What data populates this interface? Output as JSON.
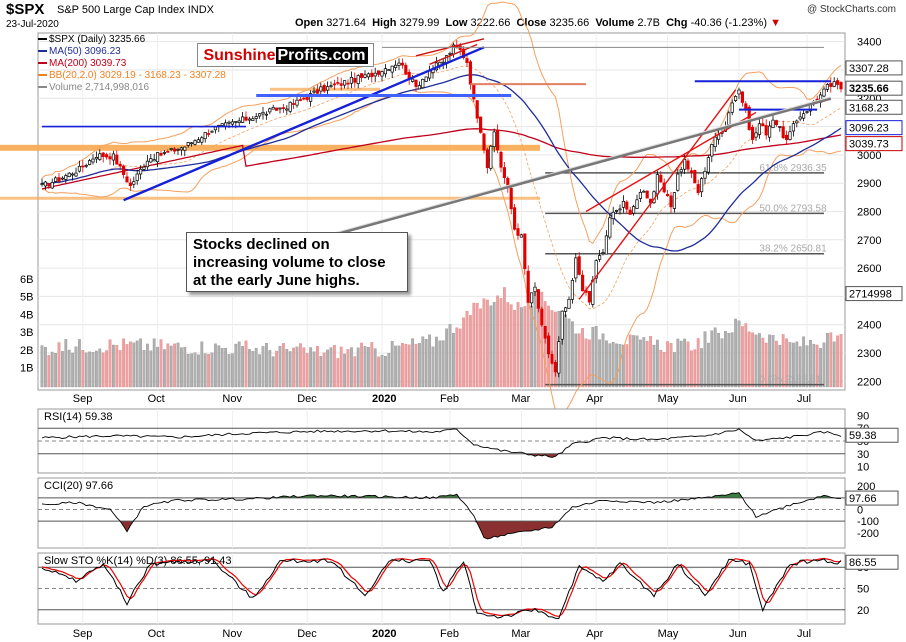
{
  "header": {
    "symbol": "$SPX",
    "name": "S&P 500 Large Cap Index",
    "exchange": "INDX",
    "date": "23-Jul-2020",
    "open_label": "Open",
    "open": "3271.64",
    "high_label": "High",
    "high": "3279.99",
    "low_label": "Low",
    "low": "3222.66",
    "close_label": "Close",
    "close": "3235.66",
    "volume_label": "Volume",
    "volume": "2.7B",
    "chg_label": "Chg",
    "chg": "-40.36 (-1.23%)",
    "credit": "@ StockCharts.com"
  },
  "logo": {
    "part1": "Sunshine",
    "part2": "Profits.com"
  },
  "annotation": {
    "line1": "Stocks declined on",
    "line2": "increasing volume to close",
    "line3": "at the early June highs."
  },
  "legend": [
    {
      "text": "$SPX (Daily) 3235.66",
      "color": "#000000"
    },
    {
      "text": "MA(50) 3096.23",
      "color": "#1f2d9a"
    },
    {
      "text": "MA(200) 3039.73",
      "color": "#c0001a"
    },
    {
      "text": "BB(20,2.0) 3029.19 - 3168.23 - 3307.28",
      "color": "#f08020"
    },
    {
      "text": "Volume 2,714,998,016",
      "color": "#888888"
    }
  ],
  "colors": {
    "up": "#000000",
    "down": "#e00000",
    "ma50": "#1f2d9a",
    "ma200": "#c0001a",
    "bb": "#f4a060",
    "vol": "#b0b0b0",
    "vol_down": "#f0a0a0",
    "fib": "#555555"
  },
  "chart_data": [
    {
      "type": "candlestick",
      "x_labels": [
        "Sep",
        "Oct",
        "Nov",
        "Dec",
        "2020",
        "Feb",
        "Mar",
        "Apr",
        "May",
        "Jun",
        "Jul"
      ],
      "y_ticks": [
        "3400",
        "3300",
        "3200",
        "3100",
        "3000",
        "2900",
        "2800",
        "2700",
        "2600",
        "2500",
        "2400",
        "2300",
        "2200"
      ],
      "ylim": [
        2180,
        3420
      ],
      "volume_ticks": [
        "6B",
        "5B",
        "4B",
        "3B",
        "2B",
        "1B"
      ],
      "price_badges": [
        {
          "value": "3307.28",
          "y": 3307.28,
          "style": "plain"
        },
        {
          "value": "3235.66",
          "y": 3235.66,
          "style": "bold"
        },
        {
          "value": "3168.23",
          "y": 3168.23,
          "style": "plain"
        },
        {
          "value": "3096.23",
          "y": 3096.23,
          "style": "blue"
        },
        {
          "value": "3039.73",
          "y": 3039.73,
          "style": "red"
        },
        {
          "value": "2714998",
          "y": 2510,
          "style": "plain"
        }
      ],
      "fib_levels": [
        {
          "label": "61.8% 2936.35",
          "y": 2936.35
        },
        {
          "label": "50.0% 2793.58",
          "y": 2793.58
        },
        {
          "label": "38.2% 2650.81",
          "y": 2650.81
        },
        {
          "label": "0.0% 2188.61",
          "y": 2188.61
        }
      ],
      "close_anchors": [
        [
          0,
          2890
        ],
        [
          5,
          2915
        ],
        [
          11,
          2950
        ],
        [
          16,
          3000
        ],
        [
          21,
          2995
        ],
        [
          26,
          2890
        ],
        [
          31,
          2985
        ],
        [
          37,
          3010
        ],
        [
          42,
          3030
        ],
        [
          50,
          3090
        ],
        [
          58,
          3120
        ],
        [
          66,
          3150
        ],
        [
          74,
          3180
        ],
        [
          82,
          3230
        ],
        [
          90,
          3260
        ],
        [
          96,
          3280
        ],
        [
          100,
          3300
        ],
        [
          105,
          3330
        ],
        [
          110,
          3240
        ],
        [
          114,
          3300
        ],
        [
          118,
          3330
        ],
        [
          121,
          3380
        ],
        [
          123,
          3370
        ],
        [
          125,
          3330
        ],
        [
          127,
          3190
        ],
        [
          129,
          3090
        ],
        [
          131,
          2960
        ],
        [
          133,
          3080
        ],
        [
          135,
          2960
        ],
        [
          137,
          2880
        ],
        [
          139,
          2740
        ],
        [
          141,
          2710
        ],
        [
          143,
          2480
        ],
        [
          145,
          2530
        ],
        [
          147,
          2390
        ],
        [
          149,
          2300
        ],
        [
          151,
          2230
        ],
        [
          153,
          2440
        ],
        [
          155,
          2480
        ],
        [
          157,
          2630
        ],
        [
          159,
          2530
        ],
        [
          161,
          2480
        ],
        [
          163,
          2630
        ],
        [
          165,
          2650
        ],
        [
          167,
          2780
        ],
        [
          169,
          2800
        ],
        [
          171,
          2840
        ],
        [
          173,
          2780
        ],
        [
          175,
          2850
        ],
        [
          177,
          2880
        ],
        [
          179,
          2830
        ],
        [
          181,
          2920
        ],
        [
          183,
          2870
        ],
        [
          185,
          2820
        ],
        [
          187,
          2930
        ],
        [
          189,
          2980
        ],
        [
          191,
          2930
        ],
        [
          193,
          2870
        ],
        [
          195,
          2950
        ],
        [
          197,
          3040
        ],
        [
          199,
          3070
        ],
        [
          201,
          3110
        ],
        [
          203,
          3190
        ],
        [
          205,
          3230
        ],
        [
          207,
          3150
        ],
        [
          209,
          3050
        ],
        [
          211,
          3110
        ],
        [
          213,
          3080
        ],
        [
          215,
          3130
        ],
        [
          217,
          3090
        ],
        [
          219,
          3050
        ],
        [
          221,
          3100
        ],
        [
          223,
          3140
        ],
        [
          225,
          3160
        ],
        [
          227,
          3190
        ],
        [
          229,
          3210
        ],
        [
          231,
          3240
        ],
        [
          233,
          3250
        ],
        [
          235,
          3236
        ]
      ],
      "volume_anchors": [
        [
          0,
          2.2
        ],
        [
          20,
          2.4
        ],
        [
          40,
          2.3
        ],
        [
          60,
          2.2
        ],
        [
          80,
          2.0
        ],
        [
          100,
          2.1
        ],
        [
          115,
          2.6
        ],
        [
          125,
          4.0
        ],
        [
          130,
          4.8
        ],
        [
          136,
          5.3
        ],
        [
          140,
          4.5
        ],
        [
          146,
          5.1
        ],
        [
          152,
          4.4
        ],
        [
          158,
          3.2
        ],
        [
          165,
          3.0
        ],
        [
          175,
          2.5
        ],
        [
          190,
          2.3
        ],
        [
          200,
          3.1
        ],
        [
          205,
          3.6
        ],
        [
          212,
          3.0
        ],
        [
          220,
          2.4
        ],
        [
          235,
          2.7
        ]
      ]
    },
    {
      "type": "line",
      "name": "RSI(14) 59.38",
      "y_ticks": [
        "90",
        "70",
        "50",
        "30",
        "10"
      ],
      "badge": "59.38",
      "ylim": [
        0,
        100
      ],
      "anchors": [
        [
          0,
          55
        ],
        [
          20,
          58
        ],
        [
          40,
          56
        ],
        [
          60,
          62
        ],
        [
          80,
          65
        ],
        [
          100,
          66
        ],
        [
          115,
          64
        ],
        [
          122,
          68
        ],
        [
          127,
          45
        ],
        [
          135,
          35
        ],
        [
          145,
          28
        ],
        [
          151,
          25
        ],
        [
          156,
          45
        ],
        [
          165,
          55
        ],
        [
          180,
          52
        ],
        [
          195,
          58
        ],
        [
          205,
          68
        ],
        [
          210,
          50
        ],
        [
          220,
          56
        ],
        [
          230,
          64
        ],
        [
          235,
          59
        ]
      ]
    },
    {
      "type": "line",
      "name": "CCI(20) 97.66",
      "y_ticks": [
        "200",
        "100",
        "0",
        "-100",
        "-200"
      ],
      "badge": "97.66",
      "ylim": [
        -330,
        270
      ],
      "anchors": [
        [
          0,
          40
        ],
        [
          10,
          60
        ],
        [
          20,
          0
        ],
        [
          25,
          -180
        ],
        [
          30,
          30
        ],
        [
          40,
          80
        ],
        [
          60,
          90
        ],
        [
          80,
          120
        ],
        [
          100,
          110
        ],
        [
          115,
          100
        ],
        [
          122,
          130
        ],
        [
          127,
          -50
        ],
        [
          130,
          -250
        ],
        [
          140,
          -200
        ],
        [
          150,
          -150
        ],
        [
          156,
          20
        ],
        [
          165,
          80
        ],
        [
          180,
          60
        ],
        [
          195,
          100
        ],
        [
          205,
          140
        ],
        [
          210,
          -60
        ],
        [
          220,
          40
        ],
        [
          230,
          120
        ],
        [
          235,
          98
        ]
      ]
    },
    {
      "type": "line",
      "name": "Slow STO %K(14) %D(3) 86.55, 91.43",
      "series_names": [
        "%K(14)",
        "%D(3)"
      ],
      "y_ticks": [
        "80",
        "50",
        "20"
      ],
      "badge": "86.55",
      "ylim": [
        0,
        100
      ],
      "anchors": [
        [
          0,
          80
        ],
        [
          10,
          60
        ],
        [
          18,
          85
        ],
        [
          25,
          30
        ],
        [
          32,
          85
        ],
        [
          50,
          90
        ],
        [
          62,
          35
        ],
        [
          70,
          88
        ],
        [
          85,
          90
        ],
        [
          95,
          40
        ],
        [
          102,
          88
        ],
        [
          114,
          90
        ],
        [
          118,
          45
        ],
        [
          124,
          90
        ],
        [
          128,
          15
        ],
        [
          135,
          10
        ],
        [
          145,
          20
        ],
        [
          152,
          8
        ],
        [
          158,
          80
        ],
        [
          165,
          60
        ],
        [
          170,
          85
        ],
        [
          180,
          40
        ],
        [
          187,
          85
        ],
        [
          195,
          40
        ],
        [
          202,
          90
        ],
        [
          208,
          85
        ],
        [
          212,
          20
        ],
        [
          220,
          85
        ],
        [
          228,
          90
        ],
        [
          235,
          87
        ]
      ]
    }
  ]
}
